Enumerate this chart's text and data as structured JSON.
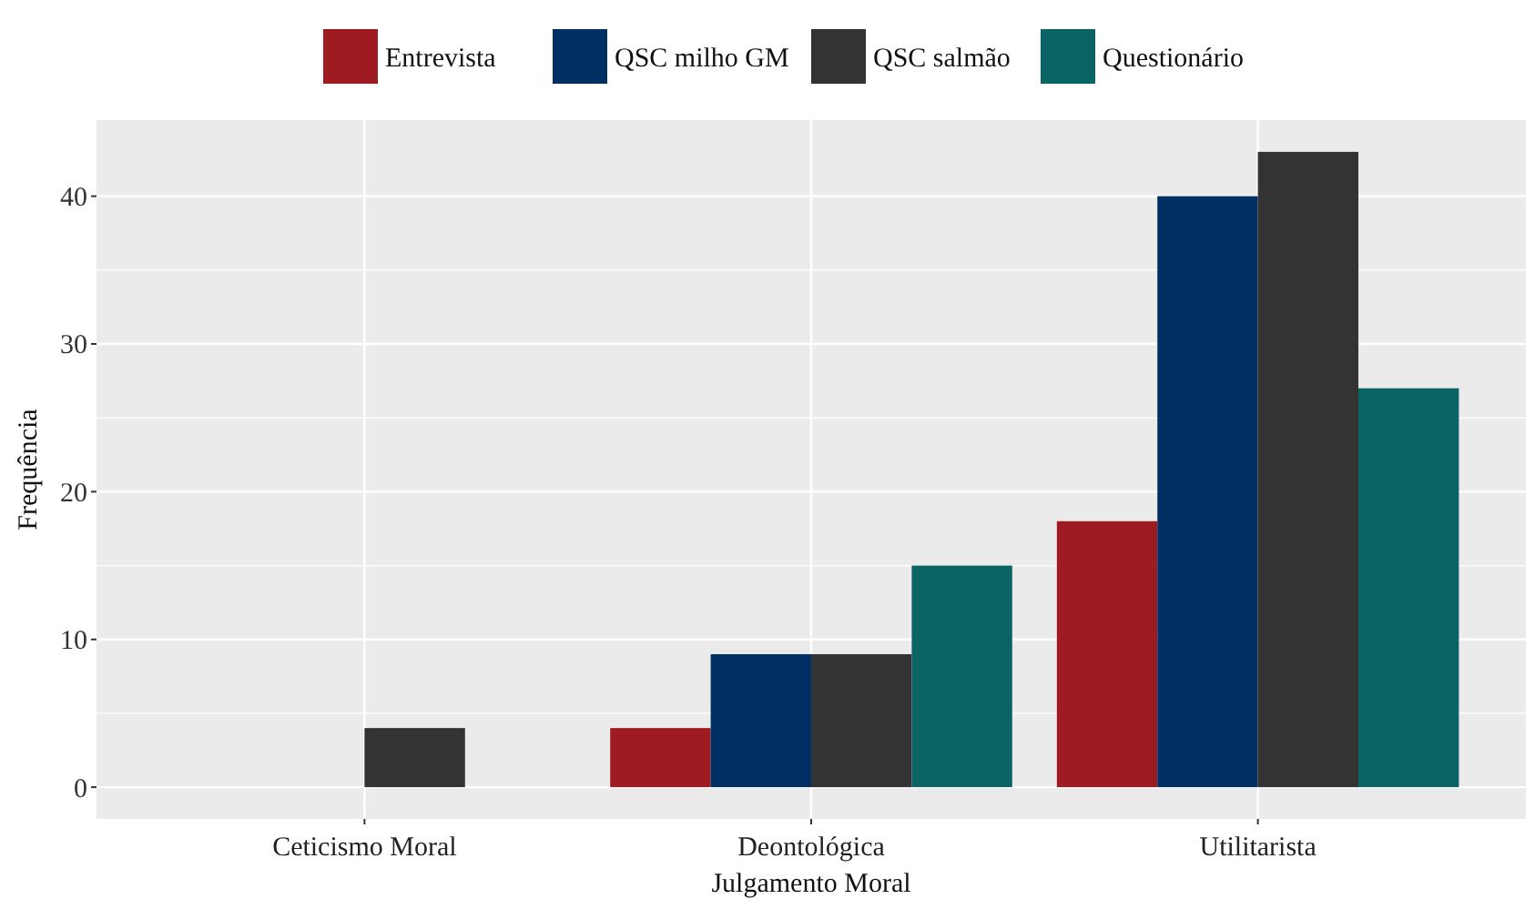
{
  "chart_data": {
    "type": "bar",
    "xlabel": "Julgamento Moral",
    "ylabel": "Frequência",
    "categories": [
      "Ceticismo Moral",
      "Deontológica",
      "Utilitarista"
    ],
    "series": [
      {
        "name": "Entrevista",
        "color": "#9e1b21",
        "values": [
          null,
          4,
          18
        ]
      },
      {
        "name": "QSC milho GM",
        "color": "#002f63",
        "values": [
          null,
          9,
          40
        ]
      },
      {
        "name": "QSC salmão",
        "color": "#333333",
        "values": [
          4,
          9,
          43
        ]
      },
      {
        "name": "Questionário",
        "color": "#0a6464",
        "values": [
          null,
          15,
          27
        ]
      }
    ],
    "ylim": [
      -2.15,
      45.15
    ],
    "yticks": [
      0,
      10,
      20,
      30,
      40
    ],
    "grid": true,
    "legend": "top"
  }
}
